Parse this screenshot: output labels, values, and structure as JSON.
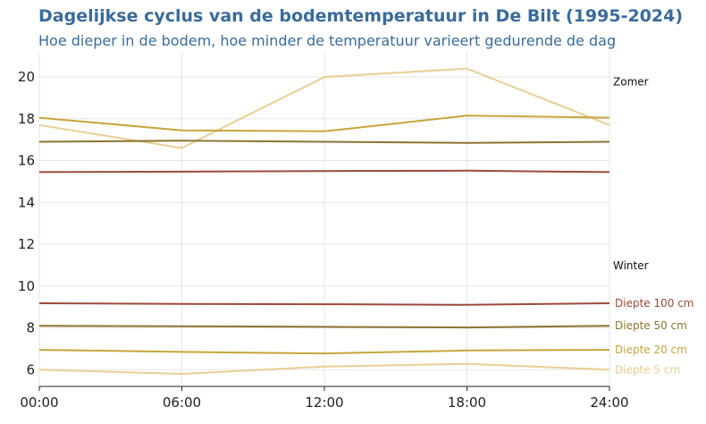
{
  "title": "Dagelijkse cyclus van de bodemtemperatuur in De Bilt (1995-2024)",
  "subtitle": "Hoe dieper in de bodem, hoe minder de temperatuur varieert gedurende de dag",
  "annotations": {
    "summer": "Zomer",
    "winter": "Winter"
  },
  "chart_data": {
    "type": "line",
    "title": "Dagelijkse cyclus van de bodemtemperatuur in De Bilt (1995-2024)",
    "subtitle": "Hoe dieper in de bodem, hoe minder de temperatuur varieert gedurende de dag",
    "xlabel": "",
    "ylabel": "",
    "x": [
      "00:00",
      "06:00",
      "12:00",
      "18:00",
      "24:00"
    ],
    "ylim": [
      5.2,
      21.2
    ],
    "yticks": [
      6,
      8,
      10,
      12,
      14,
      16,
      18,
      20
    ],
    "grid": true,
    "legend": "direct labels right",
    "series": [
      {
        "name": "Diepte 5 cm",
        "season": "Zomer",
        "color": "#e8cf94",
        "values": [
          17.7,
          16.6,
          20.0,
          20.4,
          17.7
        ]
      },
      {
        "name": "Diepte 20 cm",
        "season": "Zomer",
        "color": "#c7a53c",
        "values": [
          18.05,
          17.45,
          17.4,
          18.15,
          18.05
        ]
      },
      {
        "name": "Diepte 50 cm",
        "season": "Zomer",
        "color": "#8c7430",
        "values": [
          16.9,
          16.95,
          16.9,
          16.85,
          16.9
        ]
      },
      {
        "name": "Diepte 100 cm",
        "season": "Zomer",
        "color": "#9b4a3b",
        "values": [
          15.45,
          15.47,
          15.5,
          15.52,
          15.45
        ]
      },
      {
        "name": "Diepte 100 cm",
        "season": "Winter",
        "color": "#9b4a3b",
        "values": [
          9.18,
          9.15,
          9.13,
          9.1,
          9.18
        ]
      },
      {
        "name": "Diepte 50 cm",
        "season": "Winter",
        "color": "#8c7430",
        "values": [
          8.1,
          8.08,
          8.05,
          8.02,
          8.1
        ]
      },
      {
        "name": "Diepte 20 cm",
        "season": "Winter",
        "color": "#c7a53c",
        "values": [
          6.95,
          6.85,
          6.78,
          6.92,
          6.95
        ]
      },
      {
        "name": "Diepte 5 cm",
        "season": "Winter",
        "color": "#e8cf94",
        "values": [
          6.0,
          5.8,
          6.15,
          6.28,
          6.0
        ]
      }
    ],
    "labels": [
      {
        "text": "Diepte 100 cm",
        "color": "#9b4a3b"
      },
      {
        "text": "Diepte 50 cm",
        "color": "#8c7430"
      },
      {
        "text": "Diepte 20 cm",
        "color": "#c7a53c"
      },
      {
        "text": "Diepte 5 cm",
        "color": "#e8cf94"
      }
    ]
  }
}
